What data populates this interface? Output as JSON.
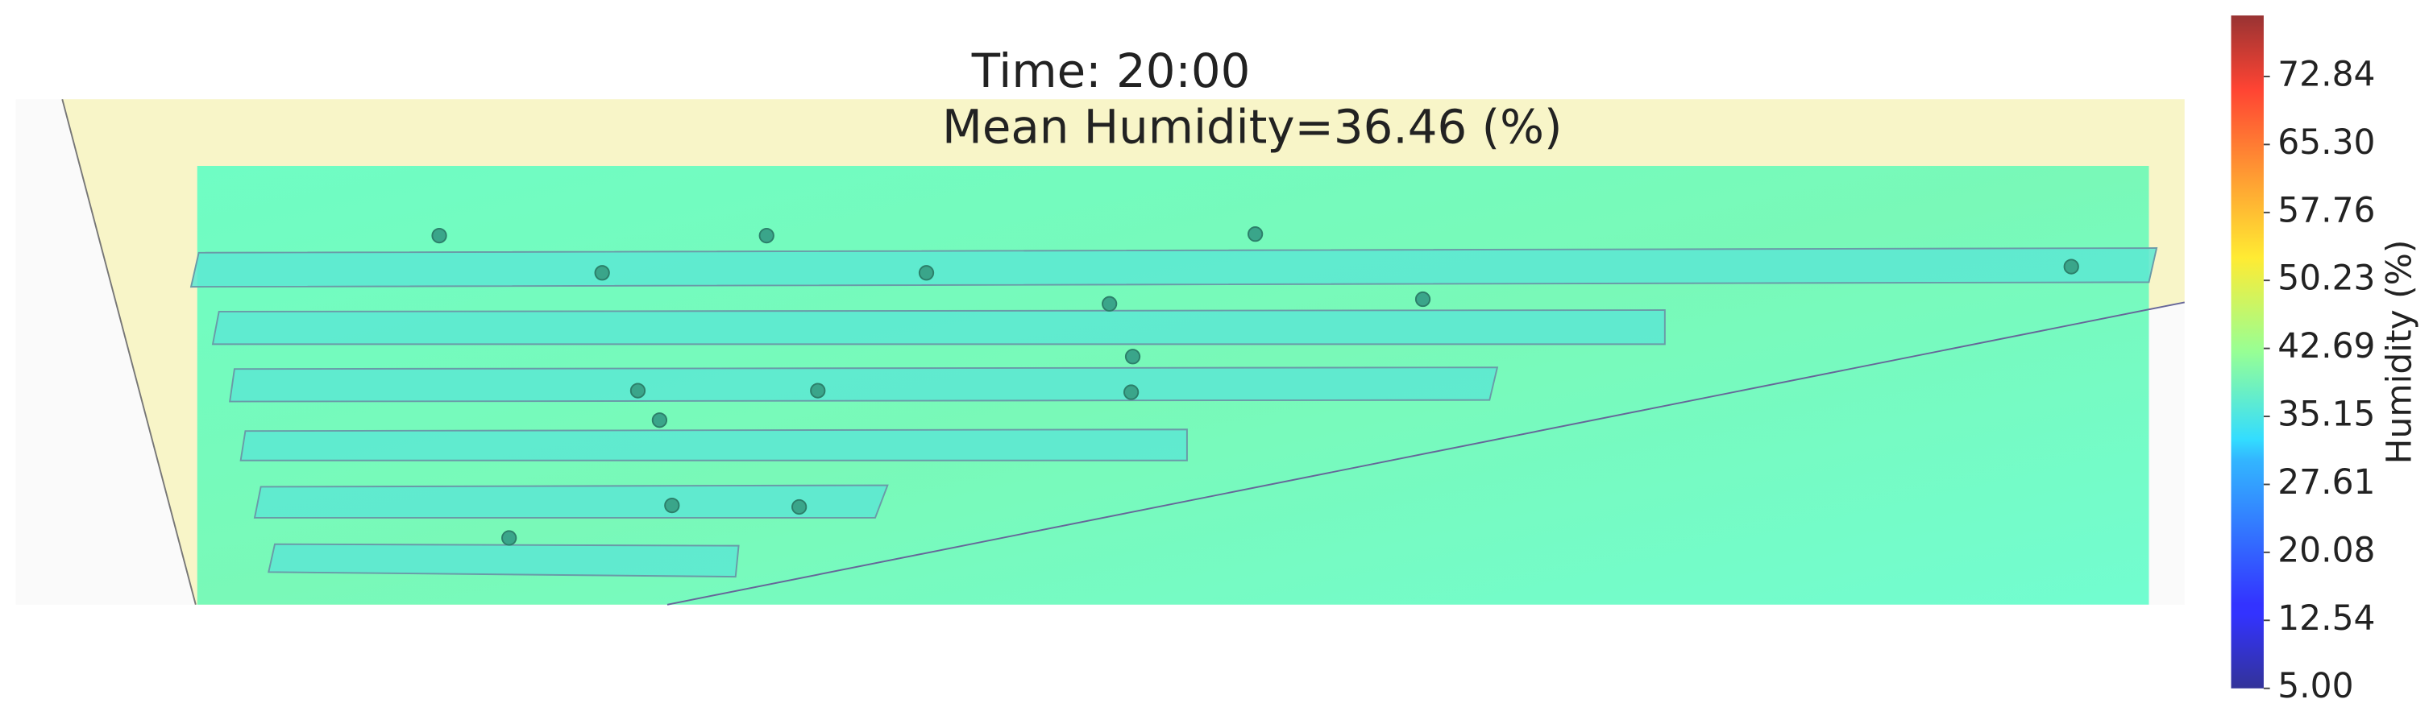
{
  "chart_data": {
    "type": "heatmap",
    "title": "Time: 20:00",
    "subtitle": "Mean Humidity=36.46 (%)",
    "colorbar_label": "Humidity (%)",
    "colormap": "jet",
    "clim": [
      5,
      79.6
    ],
    "cticks": [
      {
        "value": 5,
        "label": "5.00"
      },
      {
        "value": 12.54,
        "label": "12.54"
      },
      {
        "value": 20.08,
        "label": "20.08"
      },
      {
        "value": 27.61,
        "label": "27.61"
      },
      {
        "value": 35.15,
        "label": "35.15"
      },
      {
        "value": 42.69,
        "label": "42.69"
      },
      {
        "value": 50.23,
        "label": "50.23"
      },
      {
        "value": 57.76,
        "label": "57.76"
      },
      {
        "value": 65.3,
        "label": "65.30"
      },
      {
        "value": 72.84,
        "label": "72.84"
      }
    ]
  }
}
